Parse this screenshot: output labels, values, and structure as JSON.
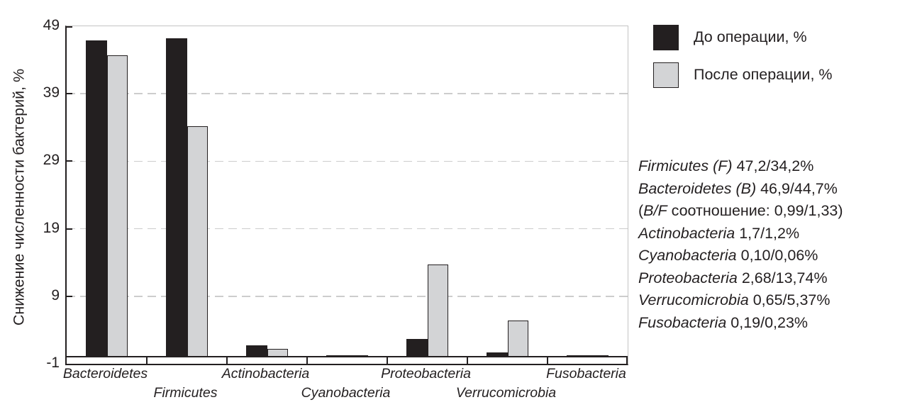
{
  "chart_data": {
    "type": "bar",
    "title": "",
    "ylabel": "Снижение численности бактерий, %",
    "xlabel": "",
    "ylim": [
      -1,
      49
    ],
    "yticks": [
      49,
      39,
      29,
      19,
      9,
      -1
    ],
    "bar_baseline": 0,
    "grid": "horizontal-dashed",
    "legend_position": "top-right",
    "categories": [
      "Bacteroidetes",
      "Firmicutes",
      "Actinobacteria",
      "Cyanobacteria",
      "Proteobacteria",
      "Verrucomicrobia",
      "Fusobacteria"
    ],
    "series": [
      {
        "name": "До операции, %",
        "color": "#231f20",
        "values": [
          46.9,
          47.2,
          1.7,
          0.1,
          2.68,
          0.65,
          0.19
        ]
      },
      {
        "name": "После операции, %",
        "color": "#d3d4d6",
        "values": [
          44.7,
          34.2,
          1.2,
          0.06,
          13.74,
          5.37,
          0.23
        ]
      }
    ]
  },
  "annotations": {
    "lines": [
      {
        "pre": "",
        "it": "Firmicutes (F)",
        "post": " 47,2/34,2%"
      },
      {
        "pre": "",
        "it": "Bacteroidetes (B)",
        "post": " 46,9/44,7%"
      },
      {
        "pre": "(",
        "it": "B/F",
        "post": " соотношение: 0,99/1,33)"
      },
      {
        "pre": "",
        "it": "Actinobacteria",
        "post": " 1,7/1,2%"
      },
      {
        "pre": "",
        "it": "Cyanobacteria",
        "post": " 0,10/0,06%"
      },
      {
        "pre": "",
        "it": "Proteobacteria",
        "post": " 2,68/13,74%"
      },
      {
        "pre": "",
        "it": "Verrucomicrobia",
        "post": " 0,65/5,37%"
      },
      {
        "pre": "",
        "it": "Fusobacteria",
        "post": " 0,19/0,23%"
      }
    ]
  },
  "colors": {
    "bar_before": "#231f20",
    "bar_after": "#d3d4d6",
    "bar_border": "#231f20",
    "axis": "#231f20",
    "gridline": "#cdcdcd",
    "plot_border": "#c4c4c4",
    "text": "#231f20",
    "background": "#ffffff"
  }
}
